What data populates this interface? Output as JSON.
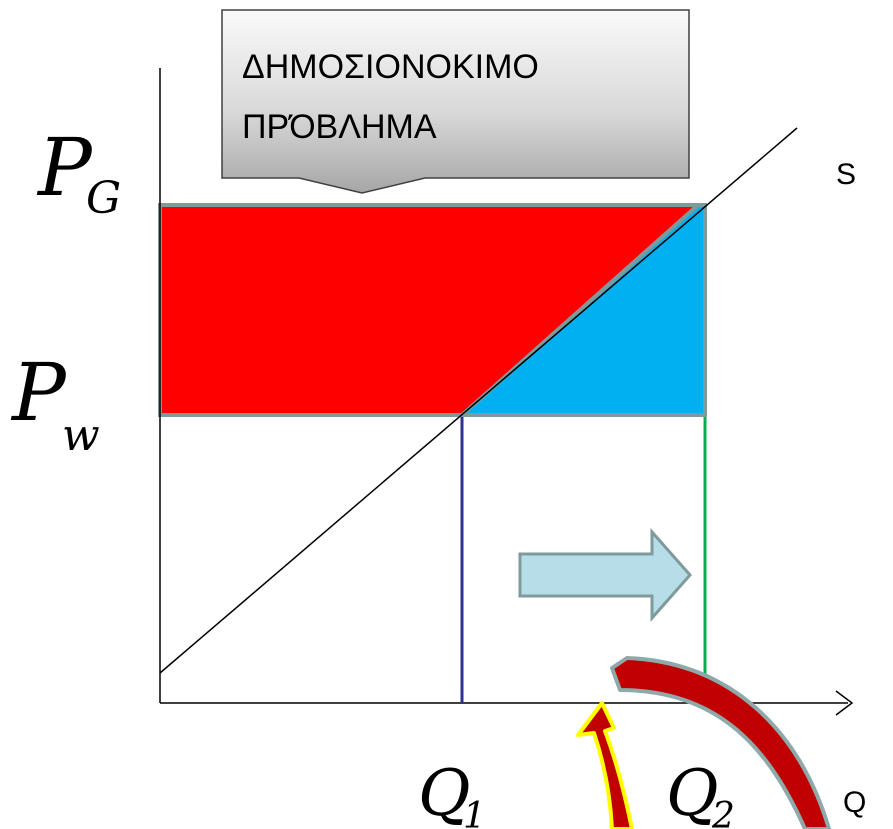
{
  "callout": {
    "line1": "ΔΗΜΟΣΙΟΝΟΚΙΜΟ",
    "line2": "ΠΡΌΒΛΗΜΑ"
  },
  "labels": {
    "price_high": {
      "letter": "P",
      "sub": "G"
    },
    "price_low": {
      "letter": "P",
      "sub": "w"
    },
    "qty_1": {
      "letter": "Q",
      "sub": "1"
    },
    "qty_2": {
      "letter": "Q",
      "sub": "2"
    },
    "supply": "S",
    "x_axis": "Q"
  },
  "colors": {
    "red_area": "#ff0000",
    "blue_area": "#00b0f0",
    "area_border": "#7f9a9a",
    "q1_line": "#2e3192",
    "q2_line": "#00b050",
    "shift_arrow": "#b7dee8",
    "curved_arrow_1": "#c00000",
    "curved_arrow_2": "#c00000",
    "curved_arrow_1_outline": "#ffff00",
    "curved_arrow_2_outline": "#8ea9a9"
  },
  "icons": {
    "shift_arrow": "right-arrow-icon",
    "curved_arrow_1": "curved-up-arrow-icon",
    "curved_arrow_2": "curved-down-arrow-icon"
  }
}
